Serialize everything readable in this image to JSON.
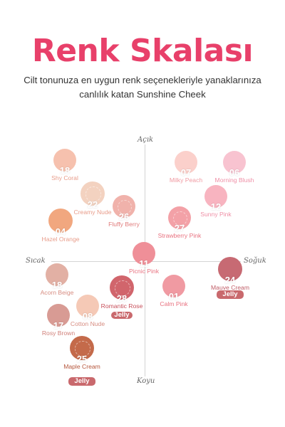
{
  "header": {
    "title": "Renk Skalası",
    "subtitle_line1": "Cilt tonunuza en uygun renk seçenekleriyle yanaklarınıza",
    "subtitle_line2": "canlılık katan Sunshine Cheek"
  },
  "axes": {
    "top": "Açık",
    "bottom": "Koyu",
    "left": "Sıcak",
    "right": "Soğuk"
  },
  "colors": {
    "title": "#e8406a",
    "badge": "#c9696d"
  },
  "shades": [
    {
      "number": "18",
      "name": "Shy Coral",
      "color": "#f6c1ae",
      "label_color": "#e89c8a"
    },
    {
      "number": "22",
      "name": "Creamy Nude",
      "color": "#f3d2c0",
      "label_color": "#e89c8a"
    },
    {
      "number": "04",
      "name": "Hazel Orange",
      "color": "#f1a77f",
      "label_color": "#e89c8a"
    },
    {
      "number": "26",
      "name": "Fluffy Berry",
      "color": "#f0b2ab",
      "label_color": "#e07b7b"
    },
    {
      "number": "07",
      "name": "Milky Peach",
      "color": "#fbd0cb",
      "label_color": "#f09aa2"
    },
    {
      "number": "06",
      "name": "Morning Blush",
      "color": "#f8c3d0",
      "label_color": "#ef8fa6"
    },
    {
      "number": "12",
      "name": "Sunny Pink",
      "color": "#f8b4c0",
      "label_color": "#ef8fa6"
    },
    {
      "number": "27",
      "name": "Strawberry Pink",
      "color": "#f3a1a7",
      "label_color": "#e8717f"
    },
    {
      "number": "11",
      "name": "Picnic Pink",
      "color": "#ef8f98",
      "label_color": "#e8717f"
    },
    {
      "number": "24",
      "name": "Mauve Cream",
      "color": "#c76a73",
      "label_color": "#c05d67",
      "badge": "Jelly"
    },
    {
      "number": "18",
      "name": "Acorn Beige",
      "color": "#e2b0a4",
      "label_color": "#d78d82"
    },
    {
      "number": "28",
      "name": "Romantic Rose",
      "color": "#d1656c",
      "label_color": "#c74f5a",
      "badge": "Jelly"
    },
    {
      "number": "01",
      "name": "Calm Pink",
      "color": "#f09aa2",
      "label_color": "#e8717f"
    },
    {
      "number": "08",
      "name": "Cotton Nude",
      "color": "#f5c9b6",
      "label_color": "#d78d82"
    },
    {
      "number": "17",
      "name": "Rosy Brown",
      "color": "#d89b94",
      "label_color": "#d07f78"
    },
    {
      "number": "25",
      "name": "Maple Cream",
      "color": "#c46a4a",
      "label_color": "#b5563b",
      "badge": "Jelly"
    }
  ]
}
